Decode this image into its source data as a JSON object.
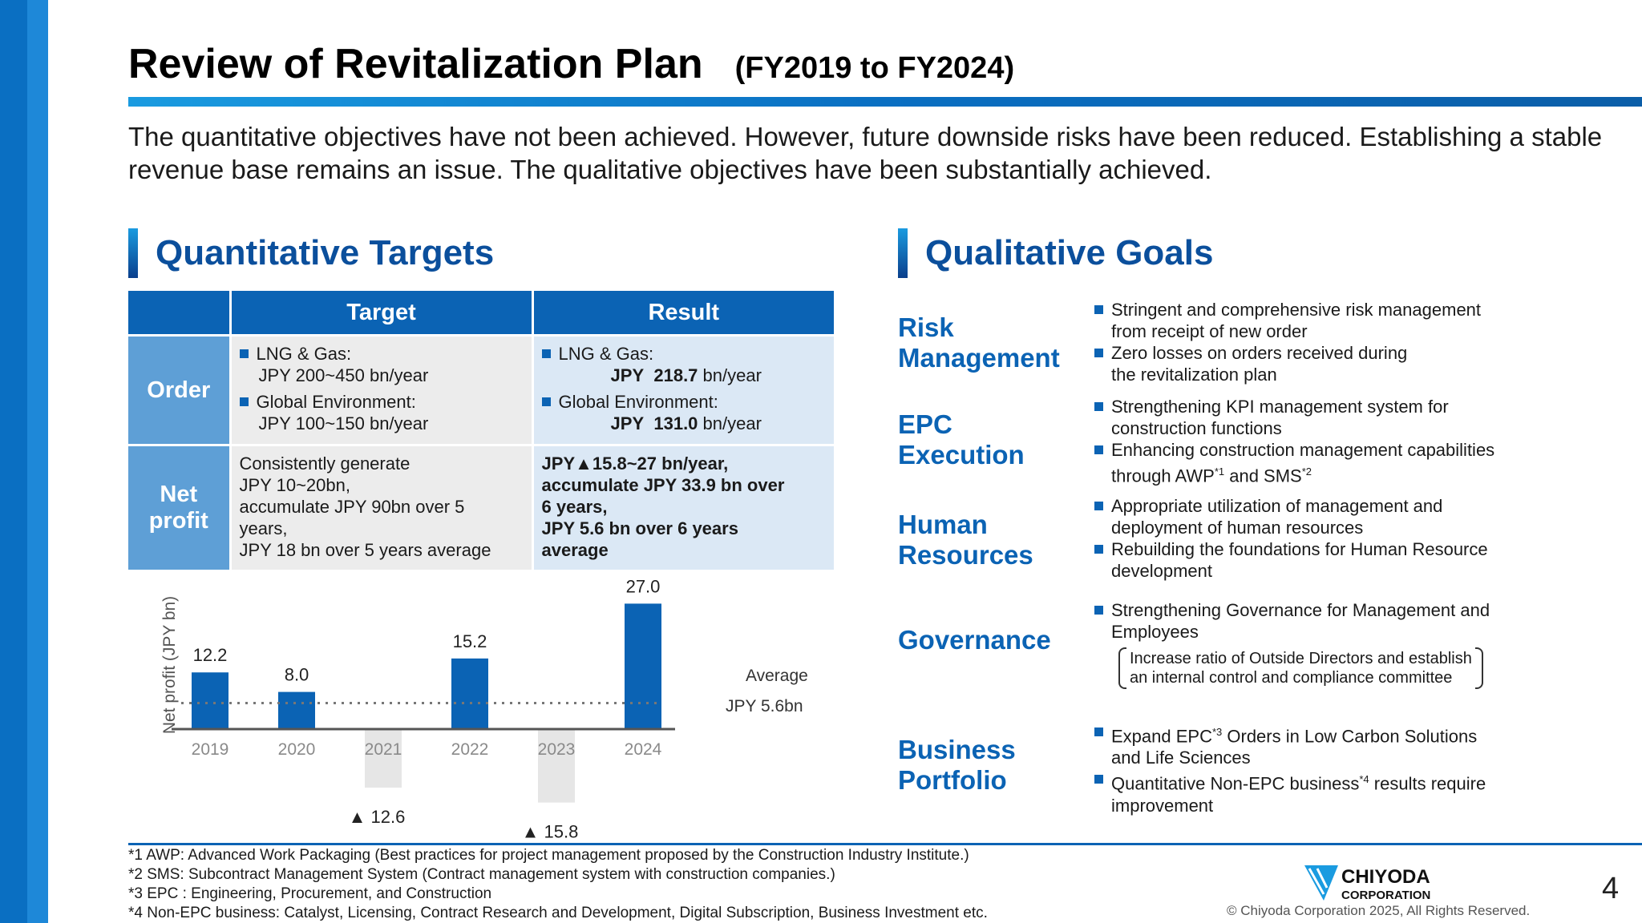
{
  "title": {
    "main": "Review of Revitalization Plan",
    "period": "(FY2019 to FY2024)"
  },
  "intro": "The quantitative objectives have not been achieved. However, future downside risks have been reduced. Establishing a stable revenue base remains an issue. The qualitative objectives have been substantially achieved.",
  "quantitative": {
    "heading": "Quantitative Targets",
    "col_target": "Target",
    "col_result": "Result",
    "order": {
      "label": "Order",
      "target_lng_label": "LNG & Gas:",
      "target_lng_value": "JPY 200~450 bn/year",
      "target_ge_label": "Global Environment:",
      "target_ge_value": "JPY 100~150 bn/year",
      "result_lng_label": "LNG & Gas:",
      "result_lng_jpy": "JPY",
      "result_lng_value": "218.7",
      "result_lng_unit": "bn/year",
      "result_ge_label": "Global Environment:",
      "result_ge_jpy": "JPY",
      "result_ge_value": "131.0",
      "result_ge_unit": "bn/year"
    },
    "net_profit": {
      "label_line1": "Net",
      "label_line2": "profit",
      "target_l1": "Consistently generate",
      "target_l2": "JPY 10~20bn,",
      "target_l3": "accumulate JPY 90bn over 5",
      "target_l4": "years,",
      "target_l5": "JPY 18 bn over 5 years average",
      "result_l1": "JPY▲15.8~27 bn/year,",
      "result_l2": "accumulate JPY 33.9 bn over",
      "result_l3": "6 years,",
      "result_l4": "JPY 5.6 bn over 6 years",
      "result_l5": "average"
    }
  },
  "chart_data": {
    "type": "bar",
    "ylabel": "Net profit (JPY bn)",
    "categories": [
      "2019",
      "2020",
      "2021",
      "2022",
      "2023",
      "2024"
    ],
    "values": [
      12.2,
      8.0,
      -12.6,
      15.2,
      -15.8,
      27.0
    ],
    "value_labels": [
      "12.2",
      "8.0",
      "▲ 12.6",
      "15.2",
      "▲ 15.8",
      "27.0"
    ],
    "average": 5.6,
    "average_label_l1": "Average",
    "average_label_l2": "JPY 5.6bn",
    "positive_color": "#0b63b4",
    "negative_color": "#e6e6e6"
  },
  "qualitative": {
    "heading": "Qualitative Goals",
    "risk": {
      "label_l1": "Risk",
      "label_l2": "Management",
      "i1_l1": "Stringent and comprehensive risk management",
      "i1_l2": "from receipt of new order",
      "i2_l1": "Zero losses on orders received during",
      "i2_l2": "the revitalization plan"
    },
    "epc": {
      "label_l1": "EPC",
      "label_l2": "Execution",
      "i1_l1": "Strengthening KPI management system for",
      "i1_l2": "construction functions",
      "i2_l1": "Enhancing construction management capabilities",
      "i2_l2a": "through AWP",
      "i2_sup1": "*1",
      "i2_l2b": " and SMS",
      "i2_sup2": "*2"
    },
    "hr": {
      "label_l1": "Human",
      "label_l2": "Resources",
      "i1_l1": "Appropriate utilization of management and",
      "i1_l2": "deployment of human resources",
      "i2_l1": "Rebuilding the foundations for Human Resource",
      "i2_l2": "development"
    },
    "gov": {
      "label": "Governance",
      "i1_l1": "Strengthening Governance for Management and",
      "i1_l2": "Employees",
      "paren_l1": "Increase ratio of Outside Directors and establish",
      "paren_l2": "an internal control and compliance committee"
    },
    "bp": {
      "label_l1": "Business",
      "label_l2": "Portfolio",
      "i1_a": "Expand EPC",
      "i1_sup": "*3",
      "i1_b": " Orders in Low Carbon Solutions",
      "i1_l2": "and Life Sciences",
      "i2_a": "Quantitative Non-EPC business",
      "i2_sup": "*4",
      "i2_b": " results require",
      "i2_l2": "improvement"
    }
  },
  "footnotes": [
    "*1 AWP: Advanced Work Packaging (Best practices for project management proposed by the Construction Industry Institute.)",
    "*2 SMS: Subcontract Management System (Contract management system with construction companies.)",
    "*3 EPC : Engineering, Procurement, and Construction",
    "*4 Non-EPC business: Catalyst, Licensing, Contract Research and Development, Digital Subscription, Business Investment etc."
  ],
  "logo": {
    "line1": "CHIYODA",
    "line2": "CORPORATION"
  },
  "copyright": "© Chiyoda Corporation 2025, All Rights Reserved.",
  "page_number": "4"
}
